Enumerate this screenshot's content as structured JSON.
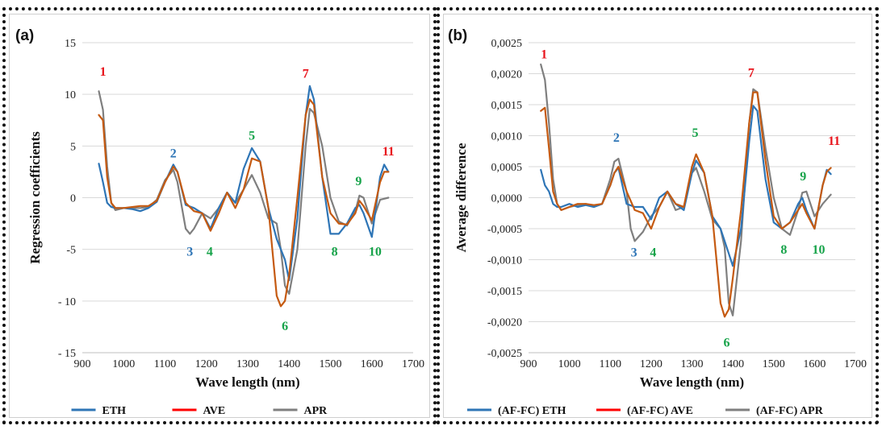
{
  "colors": {
    "eth": "#2e75b6",
    "ave": "#c55a11",
    "apr": "#7f7f7f",
    "legend_ave": "#ff0000",
    "annot_red": "#e8141c",
    "annot_green": "#17a34a",
    "annot_blue": "#2e75b6"
  },
  "chart_data": [
    {
      "type": "line",
      "panel_label": "(a)",
      "xlabel": "Wave length (nm)",
      "ylabel": "Regression coefficients",
      "xlim": [
        900,
        1700
      ],
      "ylim": [
        -15,
        15
      ],
      "x_ticks": [
        900,
        1000,
        1100,
        1200,
        1300,
        1400,
        1500,
        1600,
        1700
      ],
      "x_tick_labels": [
        "900",
        "1000",
        "1100",
        "1200",
        "1300",
        "1400",
        "1500",
        "1600",
        "1700"
      ],
      "y_ticks": [
        -15,
        -10,
        -5,
        0,
        5,
        10,
        15
      ],
      "y_tick_labels": [
        "- 15",
        "- 10",
        "-5",
        "0",
        "5",
        "10",
        "15"
      ],
      "grid": "horizontal",
      "legend_position": "bottom",
      "legend": [
        "ETH",
        "AVE",
        "APR"
      ],
      "series": [
        {
          "name": "ETH",
          "color_key": "eth",
          "x": [
            940,
            950,
            960,
            970,
            980,
            1000,
            1020,
            1040,
            1060,
            1080,
            1100,
            1120,
            1130,
            1150,
            1170,
            1190,
            1210,
            1230,
            1250,
            1270,
            1290,
            1310,
            1330,
            1350,
            1370,
            1390,
            1400,
            1420,
            1440,
            1450,
            1460,
            1480,
            1500,
            1520,
            1540,
            1560,
            1570,
            1580,
            1600,
            1620,
            1630,
            1640
          ],
          "y": [
            3.3,
            1.5,
            -0.5,
            -0.9,
            -1.0,
            -1.0,
            -1.1,
            -1.3,
            -1.0,
            -0.4,
            1.5,
            3.2,
            2.5,
            -0.7,
            -1.0,
            -1.5,
            -3.0,
            -1.0,
            0.5,
            -0.5,
            2.8,
            4.8,
            3.5,
            -1.0,
            -4.0,
            -6.0,
            -8.0,
            -2.0,
            8.0,
            10.8,
            9.5,
            2.0,
            -3.5,
            -3.5,
            -2.5,
            -1.0,
            -0.7,
            -1.5,
            -3.8,
            2.0,
            3.2,
            2.5
          ]
        },
        {
          "name": "AVE",
          "color_key": "ave",
          "x": [
            940,
            950,
            960,
            970,
            980,
            1000,
            1020,
            1040,
            1060,
            1080,
            1100,
            1120,
            1130,
            1150,
            1170,
            1190,
            1210,
            1230,
            1250,
            1270,
            1290,
            1310,
            1330,
            1350,
            1370,
            1380,
            1390,
            1400,
            1420,
            1440,
            1450,
            1460,
            1480,
            1500,
            1520,
            1540,
            1560,
            1570,
            1580,
            1600,
            1620,
            1630,
            1640
          ],
          "y": [
            8.0,
            7.5,
            2.0,
            -0.5,
            -1.0,
            -1.0,
            -0.9,
            -0.8,
            -0.8,
            -0.3,
            1.5,
            3.0,
            2.5,
            -0.5,
            -1.3,
            -1.5,
            -3.2,
            -1.5,
            0.5,
            -1.0,
            0.8,
            3.8,
            3.5,
            -1.0,
            -9.5,
            -10.5,
            -10.0,
            -7.5,
            0.0,
            8.0,
            9.5,
            9.0,
            2.0,
            -1.5,
            -2.5,
            -2.6,
            -1.5,
            -0.3,
            -0.8,
            -2.2,
            1.5,
            2.5,
            2.5
          ]
        },
        {
          "name": "APR",
          "color_key": "apr",
          "x": [
            940,
            950,
            960,
            970,
            980,
            1000,
            1020,
            1040,
            1060,
            1080,
            1100,
            1120,
            1130,
            1150,
            1160,
            1170,
            1190,
            1210,
            1230,
            1250,
            1270,
            1290,
            1310,
            1330,
            1350,
            1370,
            1380,
            1390,
            1400,
            1420,
            1440,
            1450,
            1460,
            1480,
            1500,
            1520,
            1540,
            1560,
            1570,
            1580,
            1600,
            1620,
            1640
          ],
          "y": [
            10.3,
            8.5,
            3.0,
            -0.5,
            -1.2,
            -1.0,
            -1.0,
            -1.0,
            -0.9,
            -0.2,
            1.7,
            2.7,
            1.5,
            -3.0,
            -3.5,
            -3.0,
            -1.5,
            -2.0,
            -1.0,
            0.5,
            -0.5,
            0.8,
            2.2,
            0.5,
            -2.0,
            -2.5,
            -5.0,
            -8.5,
            -9.3,
            -5.0,
            5.0,
            8.6,
            8.2,
            5.0,
            0.0,
            -2.3,
            -2.7,
            -1.3,
            0.2,
            0.0,
            -2.5,
            -0.2,
            0.0
          ]
        }
      ],
      "annotations": [
        {
          "text": "1",
          "x": 950,
          "y": 11.8,
          "color_key": "annot_red"
        },
        {
          "text": "2",
          "x": 1120,
          "y": 3.9,
          "color_key": "annot_blue"
        },
        {
          "text": "3",
          "x": 1160,
          "y": -5.6,
          "color_key": "annot_blue"
        },
        {
          "text": "4",
          "x": 1208,
          "y": -5.6,
          "color_key": "annot_green"
        },
        {
          "text": "5",
          "x": 1310,
          "y": 5.6,
          "color_key": "annot_green"
        },
        {
          "text": "6",
          "x": 1390,
          "y": -12.8,
          "color_key": "annot_green"
        },
        {
          "text": "7",
          "x": 1440,
          "y": 11.6,
          "color_key": "annot_red"
        },
        {
          "text": "8",
          "x": 1510,
          "y": -5.6,
          "color_key": "annot_green"
        },
        {
          "text": "9",
          "x": 1568,
          "y": 1.2,
          "color_key": "annot_green"
        },
        {
          "text": "10",
          "x": 1608,
          "y": -5.6,
          "color_key": "annot_green"
        },
        {
          "text": "11",
          "x": 1640,
          "y": 4.1,
          "color_key": "annot_red"
        }
      ]
    },
    {
      "type": "line",
      "panel_label": "(b)",
      "xlabel": "Wave length (nm)",
      "ylabel": "Average difference",
      "xlim": [
        900,
        1700
      ],
      "ylim": [
        -0.0025,
        0.0025
      ],
      "x_ticks": [
        900,
        1000,
        1100,
        1200,
        1300,
        1400,
        1500,
        1600,
        1700
      ],
      "x_tick_labels": [
        "900",
        "1000",
        "1100",
        "1200",
        "1300",
        "1400",
        "1500",
        "1600",
        "1700"
      ],
      "y_ticks": [
        -0.0025,
        -0.002,
        -0.0015,
        -0.001,
        -0.0005,
        0.0,
        0.0005,
        0.001,
        0.0015,
        0.002,
        0.0025
      ],
      "y_tick_labels": [
        "-0,0025",
        "-0,0020",
        "-0,0015",
        "-0,0010",
        "-0,0005",
        "0,0000",
        "0,0005",
        "0,0010",
        "0,0015",
        "0,0020",
        "0,0025"
      ],
      "grid": "horizontal",
      "legend_position": "bottom",
      "legend": [
        "(AF-FC) ETH",
        "(AF-FC) AVE",
        "(AF-FC) APR"
      ],
      "series": [
        {
          "name": "(AF-FC) ETH",
          "color_key": "eth",
          "x": [
            930,
            940,
            950,
            960,
            970,
            980,
            1000,
            1020,
            1040,
            1060,
            1080,
            1100,
            1110,
            1120,
            1140,
            1160,
            1180,
            1200,
            1220,
            1240,
            1260,
            1280,
            1300,
            1310,
            1330,
            1350,
            1370,
            1390,
            1400,
            1420,
            1440,
            1450,
            1460,
            1480,
            1500,
            1520,
            1540,
            1560,
            1570,
            1580,
            1600,
            1620,
            1630,
            1640
          ],
          "y": [
            0.00045,
            0.0002,
            0.0001,
            -0.0001,
            -0.00015,
            -0.00015,
            -0.0001,
            -0.00015,
            -0.00012,
            -0.00015,
            -0.0001,
            0.0002,
            0.0004,
            0.00048,
            -0.0001,
            -0.00015,
            -0.00015,
            -0.00035,
            0.0,
            0.0001,
            -0.0001,
            -0.0002,
            0.0004,
            0.0006,
            0.0004,
            -0.0003,
            -0.0005,
            -0.0009,
            -0.0011,
            -0.0005,
            0.0009,
            0.00148,
            0.0014,
            0.0003,
            -0.0004,
            -0.0005,
            -0.0004,
            -0.0001,
            0.0,
            -0.0002,
            -0.0005,
            0.0002,
            0.00045,
            0.00038
          ]
        },
        {
          "name": "(AF-FC) AVE",
          "color_key": "ave",
          "x": [
            930,
            940,
            950,
            960,
            970,
            980,
            1000,
            1020,
            1040,
            1060,
            1080,
            1100,
            1110,
            1120,
            1140,
            1160,
            1180,
            1200,
            1220,
            1240,
            1260,
            1280,
            1300,
            1310,
            1330,
            1350,
            1370,
            1380,
            1390,
            1400,
            1420,
            1440,
            1450,
            1460,
            1480,
            1500,
            1520,
            1540,
            1560,
            1570,
            1580,
            1600,
            1620,
            1630,
            1640
          ],
          "y": [
            0.0014,
            0.00145,
            0.0008,
            0.0001,
            -0.0001,
            -0.0002,
            -0.00015,
            -0.0001,
            -0.0001,
            -0.00012,
            -0.0001,
            0.0002,
            0.0004,
            0.0005,
            0.0001,
            -0.0002,
            -0.00025,
            -0.0005,
            -0.00015,
            0.0001,
            -0.0001,
            -0.00015,
            0.0005,
            0.0007,
            0.0004,
            -0.0003,
            -0.0017,
            -0.00192,
            -0.0018,
            -0.0013,
            -0.0002,
            0.0012,
            0.0017,
            0.0017,
            0.0006,
            -0.0003,
            -0.0005,
            -0.0004,
            -0.0002,
            -0.0001,
            -0.00025,
            -0.0005,
            0.0002,
            0.00042,
            0.00048
          ]
        },
        {
          "name": "(AF-FC) APR",
          "color_key": "apr",
          "x": [
            930,
            940,
            950,
            960,
            970,
            980,
            1000,
            1020,
            1040,
            1060,
            1080,
            1100,
            1110,
            1120,
            1140,
            1150,
            1160,
            1180,
            1200,
            1220,
            1240,
            1260,
            1280,
            1300,
            1310,
            1330,
            1350,
            1370,
            1380,
            1390,
            1400,
            1420,
            1440,
            1450,
            1460,
            1480,
            1500,
            1520,
            1540,
            1560,
            1570,
            1580,
            1600,
            1620,
            1640
          ],
          "y": [
            0.00215,
            0.0019,
            0.0012,
            0.0003,
            -0.0001,
            -0.0002,
            -0.00015,
            -0.00012,
            -0.0001,
            -0.00015,
            -0.0001,
            0.0003,
            0.00058,
            0.00063,
            0.0001,
            -0.0005,
            -0.0007,
            -0.00055,
            -0.0003,
            -0.00015,
            0.0001,
            -0.0002,
            -0.00015,
            0.0004,
            0.00048,
            0.0001,
            -0.00035,
            -0.0005,
            -0.0008,
            -0.0017,
            -0.0019,
            -0.0007,
            0.0012,
            0.00175,
            0.0017,
            0.0008,
            0.0,
            -0.0005,
            -0.0006,
            -0.0002,
            8e-05,
            0.0001,
            -0.0003,
            -0.0001,
            5e-05
          ]
        }
      ],
      "annotations": [
        {
          "text": "1",
          "x": 938,
          "y": 0.00225,
          "color_key": "annot_red"
        },
        {
          "text": "2",
          "x": 1115,
          "y": 0.0009,
          "color_key": "annot_blue"
        },
        {
          "text": "3",
          "x": 1158,
          "y": -0.00095,
          "color_key": "annot_blue"
        },
        {
          "text": "4",
          "x": 1205,
          "y": -0.00095,
          "color_key": "annot_green"
        },
        {
          "text": "5",
          "x": 1308,
          "y": 0.00098,
          "color_key": "annot_green"
        },
        {
          "text": "6",
          "x": 1385,
          "y": -0.0024,
          "color_key": "annot_green"
        },
        {
          "text": "7",
          "x": 1445,
          "y": 0.00195,
          "color_key": "annot_red"
        },
        {
          "text": "8",
          "x": 1525,
          "y": -0.0009,
          "color_key": "annot_green"
        },
        {
          "text": "9",
          "x": 1572,
          "y": 0.00028,
          "color_key": "annot_green"
        },
        {
          "text": "10",
          "x": 1610,
          "y": -0.0009,
          "color_key": "annot_green"
        },
        {
          "text": "11",
          "x": 1648,
          "y": 0.00085,
          "color_key": "annot_red"
        }
      ]
    }
  ]
}
